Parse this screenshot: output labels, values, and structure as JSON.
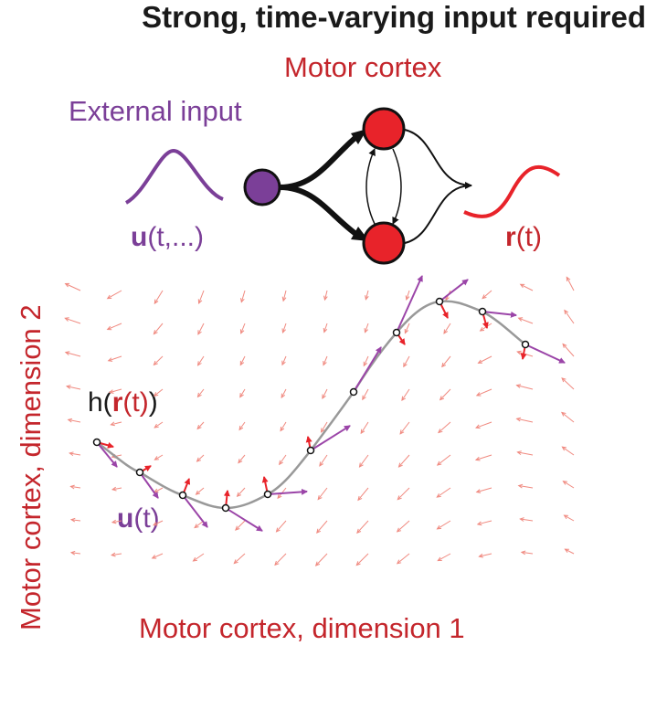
{
  "title": "Strong, time-varying input required",
  "motor_cortex_label": "Motor cortex",
  "external_input_label": "External input",
  "input_eq": {
    "symbol": "u",
    "args": "(t,...)"
  },
  "output_eq": {
    "symbol": "r",
    "args": "(t)"
  },
  "dynamics_eq": {
    "prefix": "h(",
    "symbol": "r",
    "args": "(t)",
    "suffix": ")"
  },
  "trajectory_input_eq": {
    "symbol": "u",
    "args": "(t)"
  },
  "x_axis_label": "Motor cortex, dimension 1",
  "y_axis_label": "Motor cortex, dimension 2",
  "colors": {
    "motor": "#c4262c",
    "node_fill": "#e8232a",
    "input": "#7b3f98",
    "input_node": "#7b3f98",
    "flow_arrow": "#f08a80",
    "trajectory": "#999999",
    "text": "#1a1a1a"
  }
}
